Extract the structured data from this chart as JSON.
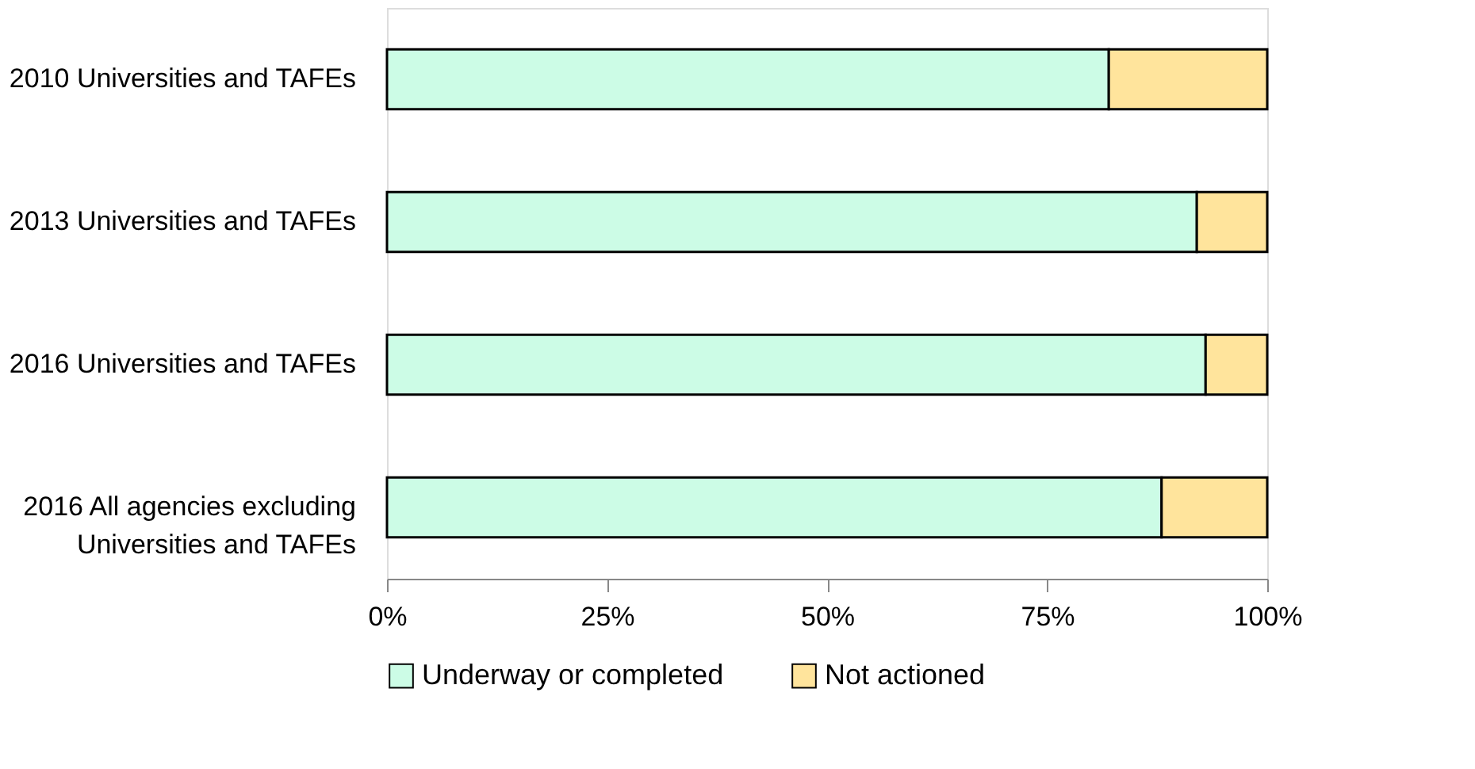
{
  "chart_data": {
    "type": "bar",
    "orientation": "horizontal",
    "stacked": true,
    "categories": [
      "2010 Universities and TAFEs",
      "2013 Universities and TAFEs",
      "2016 Universities and TAFEs",
      "2016 All agencies excluding\nUniversities and TAFEs"
    ],
    "series": [
      {
        "name": "Underway or completed",
        "color": "#ccfce6",
        "values": [
          82,
          92,
          93,
          88
        ]
      },
      {
        "name": "Not actioned",
        "color": "#ffe49c",
        "values": [
          18,
          8,
          7,
          12
        ]
      }
    ],
    "xlim": [
      0,
      100
    ],
    "xticks": [
      {
        "value": 0,
        "label": "0%"
      },
      {
        "value": 25,
        "label": "25%"
      },
      {
        "value": 50,
        "label": "50%"
      },
      {
        "value": 75,
        "label": "75%"
      },
      {
        "value": 100,
        "label": "100%"
      }
    ],
    "grid": false,
    "legend": "bottom"
  }
}
